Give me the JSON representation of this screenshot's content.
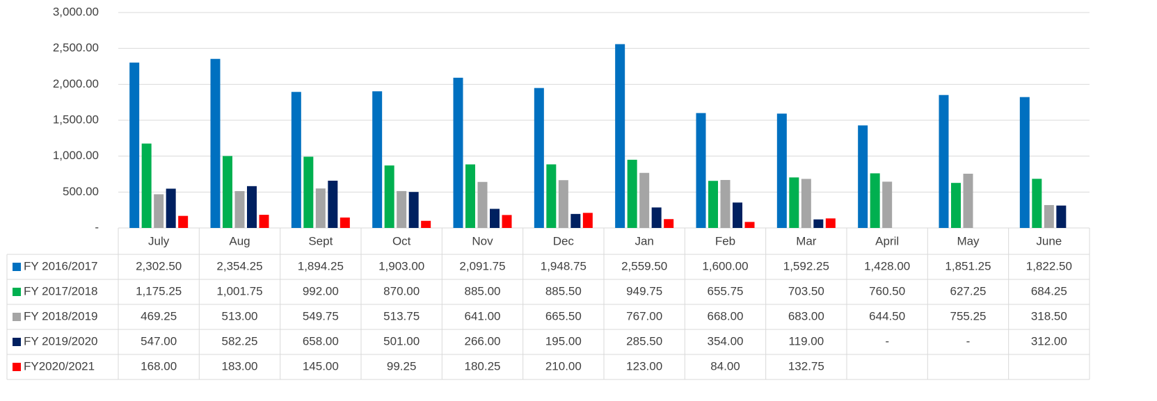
{
  "chart_data": {
    "type": "bar",
    "categories": [
      "July",
      "Aug",
      "Sept",
      "Oct",
      "Nov",
      "Dec",
      "Jan",
      "Feb",
      "Mar",
      "April",
      "May",
      "June"
    ],
    "ylim": [
      0,
      3000
    ],
    "yticks": [
      {
        "value": 0,
        "label": "-"
      },
      {
        "value": 500,
        "label": "500.00"
      },
      {
        "value": 1000,
        "label": "1,000.00"
      },
      {
        "value": 1500,
        "label": "1,500.00"
      },
      {
        "value": 2000,
        "label": "2,000.00"
      },
      {
        "value": 2500,
        "label": "2,500.00"
      },
      {
        "value": 3000,
        "label": "3,000.00"
      }
    ],
    "grid": true,
    "series": [
      {
        "name": "FY 2016/2017",
        "color": "#0070c0",
        "values": [
          2302.5,
          2354.25,
          1894.25,
          1903,
          2091.75,
          1948.75,
          2559.5,
          1600,
          1592.25,
          1428,
          1851.25,
          1822.5
        ],
        "value_labels": [
          "2,302.50",
          "2,354.25",
          "1,894.25",
          "1,903.00",
          "2,091.75",
          "1,948.75",
          "2,559.50",
          "1,600.00",
          "1,592.25",
          "1,428.00",
          "1,851.25",
          "1,822.50"
        ]
      },
      {
        "name": "FY 2017/2018",
        "color": "#00b050",
        "values": [
          1175.25,
          1001.75,
          992,
          870,
          885,
          885.5,
          949.75,
          655.75,
          703.5,
          760.5,
          627.25,
          684.25
        ],
        "value_labels": [
          "1,175.25",
          "1,001.75",
          "992.00",
          "870.00",
          "885.00",
          "885.50",
          "949.75",
          "655.75",
          "703.50",
          "760.50",
          "627.25",
          "684.25"
        ]
      },
      {
        "name": "FY 2018/2019",
        "color": "#a5a5a5",
        "values": [
          469.25,
          513,
          549.75,
          513.75,
          641,
          665.5,
          767,
          668,
          683,
          644.5,
          755.25,
          318.5
        ],
        "value_labels": [
          "469.25",
          "513.00",
          "549.75",
          "513.75",
          "641.00",
          "665.50",
          "767.00",
          "668.00",
          "683.00",
          "644.50",
          "755.25",
          "318.50"
        ]
      },
      {
        "name": "FY 2019/2020",
        "color": "#002060",
        "values": [
          547,
          582.25,
          658,
          501,
          266,
          195,
          285.5,
          354,
          119,
          null,
          null,
          312
        ],
        "value_labels": [
          "547.00",
          "582.25",
          "658.00",
          "501.00",
          "266.00",
          "195.00",
          "285.50",
          "354.00",
          "119.00",
          "-",
          "-",
          "312.00"
        ]
      },
      {
        "name": "FY2020/2021",
        "color": "#ff0000",
        "values": [
          168,
          183,
          145,
          99.25,
          180.25,
          210,
          123,
          84,
          132.75,
          null,
          null,
          null
        ],
        "value_labels": [
          "168.00",
          "183.00",
          "145.00",
          "99.25",
          "180.25",
          "210.00",
          "123.00",
          "84.00",
          "132.75",
          null,
          null,
          null
        ]
      }
    ]
  }
}
